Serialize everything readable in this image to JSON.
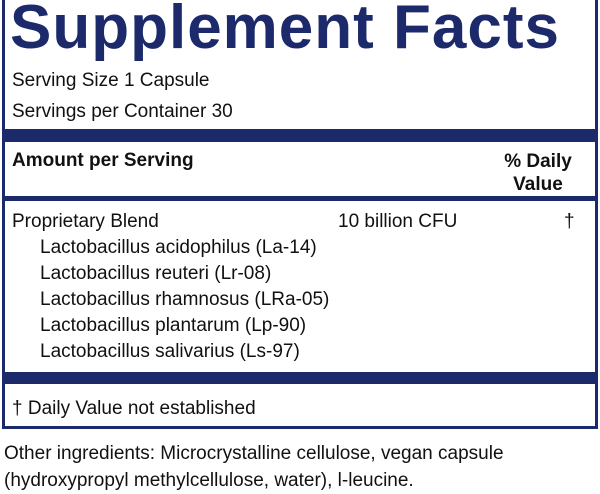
{
  "header": {
    "title": "Supplement Facts"
  },
  "serving": {
    "size": "Serving Size 1 Capsule",
    "per_container": "Servings per Container 30"
  },
  "table": {
    "headers": [
      "Amount per Serving",
      "% Daily Value"
    ],
    "rows": [
      [
        "Proprietary Blend",
        "10 billion CFU",
        "†"
      ]
    ],
    "ingredients": [
      "Lactobacillus acidophilus (La-14)",
      "Lactobacillus reuteri (Lr-08)",
      "Lactobacillus rhamnosus (LRa-05)",
      "Lactobacillus plantarum (Lp-90)",
      "Lactobacillus salivarius (Ls-97)"
    ]
  },
  "footnote": "† Daily Value not established",
  "other_ingredients": "Other ingredients:  Microcrystalline cellulose, vegan capsule (hydroxypropyl methylcellulose, water), l-leucine."
}
